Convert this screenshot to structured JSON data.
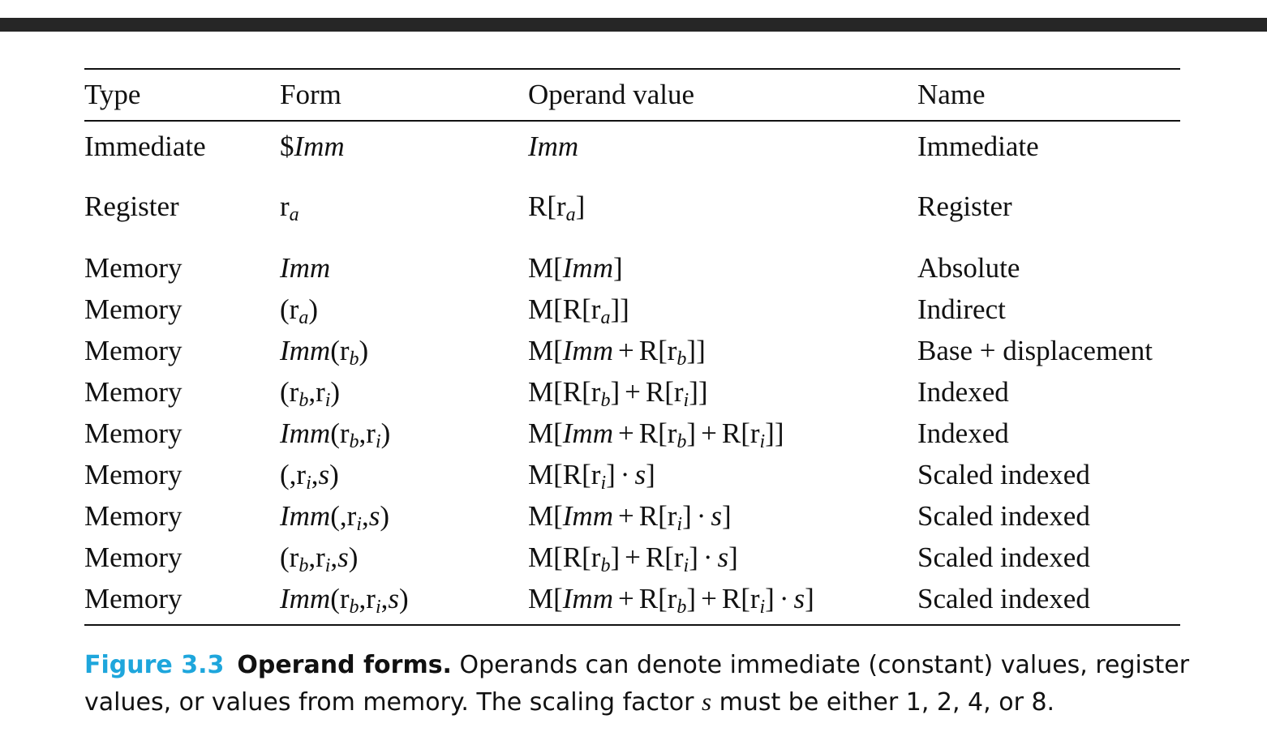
{
  "table": {
    "headers": [
      "Type",
      "Form",
      "Operand value",
      "Name"
    ],
    "rows": [
      {
        "type": "Immediate",
        "form": "$Imm",
        "value": "Imm",
        "name": "Immediate"
      },
      {
        "type": "Register",
        "form": "ra",
        "value": "R[ra]",
        "name": "Register"
      },
      {
        "type": "Memory",
        "form": "Imm",
        "value": "M[Imm]",
        "name": "Absolute"
      },
      {
        "type": "Memory",
        "form": "(ra)",
        "value": "M[R[ra]]",
        "name": "Indirect"
      },
      {
        "type": "Memory",
        "form": "Imm(rb)",
        "value": "M[Imm + R[rb]]",
        "name": "Base + displacement"
      },
      {
        "type": "Memory",
        "form": "(rb,ri)",
        "value": "M[R[rb] + R[ri]]",
        "name": "Indexed"
      },
      {
        "type": "Memory",
        "form": "Imm(rb,ri)",
        "value": "M[Imm + R[rb] + R[ri]]",
        "name": "Indexed"
      },
      {
        "type": "Memory",
        "form": "(,ri,s)",
        "value": "M[R[ri] · s]",
        "name": "Scaled indexed"
      },
      {
        "type": "Memory",
        "form": "Imm(,ri,s)",
        "value": "M[Imm + R[ri] · s]",
        "name": "Scaled indexed"
      },
      {
        "type": "Memory",
        "form": "(rb,ri,s)",
        "value": "M[R[rb] + R[ri] · s]",
        "name": "Scaled indexed"
      },
      {
        "type": "Memory",
        "form": "Imm(rb,ri,s)",
        "value": "M[Imm + R[rb] + R[ri] · s]",
        "name": "Scaled indexed"
      }
    ]
  },
  "caption": {
    "label": "Figure 3.3",
    "title": "Operand forms.",
    "text_before_var": "Operands can denote immediate (constant) values, register values, or values from memory. The scaling factor",
    "var": "s",
    "text_after_var": "must be either 1, 2, 4, or 8."
  },
  "colors": {
    "accent": "#1ea6dc",
    "top_bar": "#262626",
    "text": "#111111"
  }
}
